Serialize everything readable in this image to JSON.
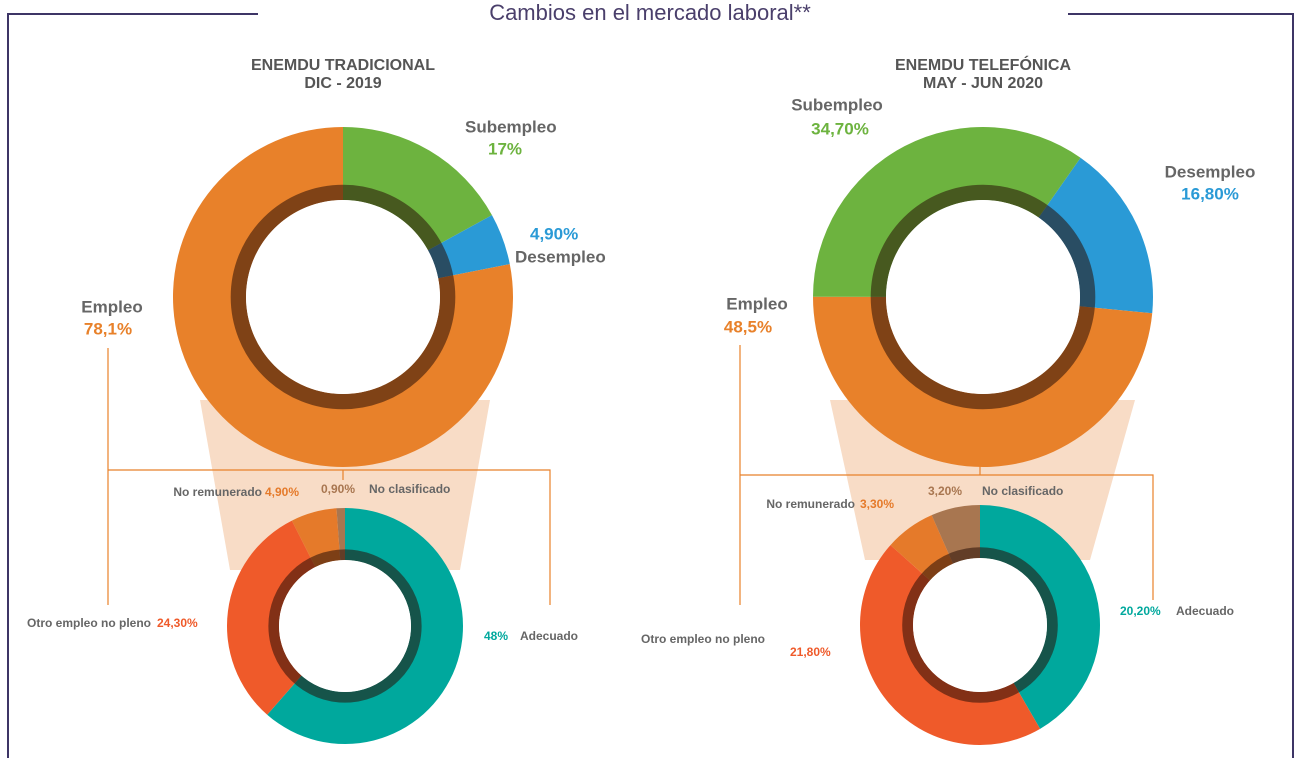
{
  "title": "Cambios en el mercado laboral**",
  "chart_data": [
    {
      "type": "pie",
      "title": "ENEMDU TRADICIONAL",
      "subtitle": "DIC - 2019",
      "categories": [
        "Subempleo",
        "Desempleo",
        "Empleo"
      ],
      "values": [
        17,
        4.9,
        78.1
      ],
      "value_labels": [
        "17%",
        "4,90%",
        "78,1%"
      ],
      "colors": [
        "#6db33f",
        "#2a9ad6",
        "#e8812a"
      ]
    },
    {
      "type": "pie",
      "title": "ENEMDU TELEFÓNICA",
      "subtitle": "MAY - JUN 2020",
      "categories": [
        "Desempleo",
        "Empleo",
        "Subempleo"
      ],
      "values": [
        16.8,
        48.5,
        34.7
      ],
      "value_labels": [
        "16,80%",
        "48,5%",
        "34,70%"
      ],
      "colors": [
        "#2a9ad6",
        "#e8812a",
        "#6db33f"
      ]
    },
    {
      "type": "pie",
      "categories": [
        "Adecuado",
        "Otro empleo no pleno",
        "No remunerado",
        "No clasificado"
      ],
      "values": [
        48,
        24.3,
        4.9,
        0.9
      ],
      "value_labels": [
        "48%",
        "24,30%",
        "4,90%",
        "0,90%"
      ],
      "colors": [
        "#00a89d",
        "#ef5a2a",
        "#e57a2a",
        "#a87650"
      ]
    },
    {
      "type": "pie",
      "categories": [
        "Adecuado",
        "Otro empleo no pleno",
        "No remunerado",
        "No clasificado"
      ],
      "values": [
        20.2,
        21.8,
        3.3,
        3.2
      ],
      "value_labels": [
        "20,20%",
        "21,80%",
        "3,30%",
        "3,20%"
      ],
      "colors": [
        "#00a89d",
        "#ef5a2a",
        "#e57a2a",
        "#a87650"
      ]
    }
  ]
}
